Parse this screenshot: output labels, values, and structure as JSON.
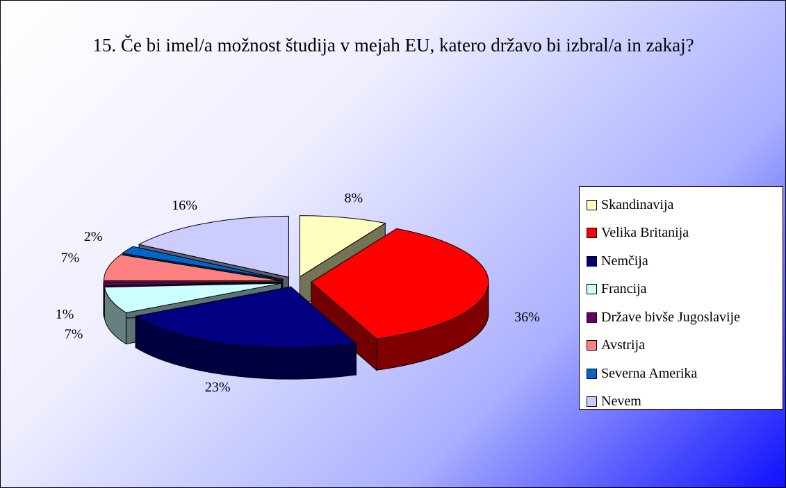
{
  "chart_data": {
    "type": "pie",
    "title": "15. Če bi imel/a možnost študija v mejah EU, katero državo bi izbral/a in zakaj?",
    "categories": [
      "Skandinavija",
      "Velika Britanija",
      "Nemčija",
      "Francija",
      "Države bivše Jugoslavije",
      "Avstrija",
      "Severna Amerika",
      "Nevem"
    ],
    "values": [
      8,
      36,
      23,
      7,
      1,
      7,
      2,
      16
    ],
    "value_labels": [
      "8%",
      "36%",
      "23%",
      "7%",
      "1%",
      "7%",
      "2%",
      "16%"
    ],
    "colors": [
      "#ffffc0",
      "#ff0000",
      "#000080",
      "#ccffff",
      "#660066",
      "#ff8080",
      "#0066cc",
      "#ccccff"
    ],
    "legend": "right"
  }
}
